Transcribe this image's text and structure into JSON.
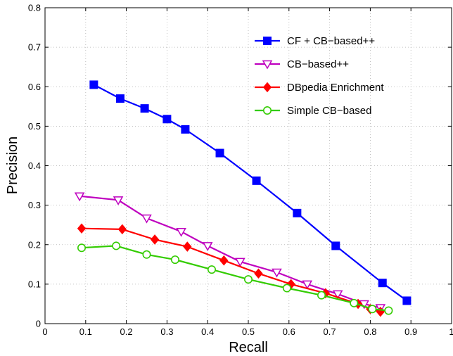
{
  "chart_data": {
    "type": "line",
    "xlabel": "Recall",
    "ylabel": "Precision",
    "xlim": [
      0,
      1
    ],
    "ylim": [
      0,
      0.8
    ],
    "xticks": [
      "0",
      "0.1",
      "0.2",
      "0.3",
      "0.4",
      "0.5",
      "0.6",
      "0.7",
      "0.8",
      "0.9",
      "1"
    ],
    "yticks": [
      "0",
      "0.1",
      "0.2",
      "0.3",
      "0.4",
      "0.5",
      "0.6",
      "0.7",
      "0.8"
    ],
    "grid": "dotted",
    "legend_position": "top-right",
    "series": [
      {
        "name": "CF + CB−based++",
        "color": "#0000ff",
        "marker": "square",
        "x": [
          0.12,
          0.185,
          0.245,
          0.3,
          0.345,
          0.43,
          0.52,
          0.62,
          0.715,
          0.83,
          0.89
        ],
        "y": [
          0.605,
          0.57,
          0.545,
          0.518,
          0.492,
          0.432,
          0.362,
          0.28,
          0.197,
          0.103,
          0.058
        ]
      },
      {
        "name": "CB−based++",
        "color": "#bf00bf",
        "marker": "triangle-down",
        "x": [
          0.085,
          0.18,
          0.25,
          0.335,
          0.4,
          0.48,
          0.57,
          0.645,
          0.72,
          0.785,
          0.825
        ],
        "y": [
          0.323,
          0.313,
          0.267,
          0.233,
          0.197,
          0.157,
          0.13,
          0.1,
          0.075,
          0.05,
          0.04
        ]
      },
      {
        "name": "DBpedia Enrichment",
        "color": "#ff0000",
        "marker": "diamond",
        "x": [
          0.09,
          0.19,
          0.27,
          0.35,
          0.44,
          0.525,
          0.605,
          0.69,
          0.77,
          0.8,
          0.825
        ],
        "y": [
          0.241,
          0.239,
          0.213,
          0.195,
          0.16,
          0.127,
          0.1,
          0.077,
          0.05,
          0.037,
          0.03
        ]
      },
      {
        "name": "Simple CB−based",
        "color": "#33cc00",
        "marker": "circle",
        "x": [
          0.09,
          0.175,
          0.25,
          0.32,
          0.41,
          0.5,
          0.595,
          0.68,
          0.76,
          0.805,
          0.845
        ],
        "y": [
          0.192,
          0.197,
          0.175,
          0.162,
          0.137,
          0.112,
          0.09,
          0.072,
          0.052,
          0.037,
          0.033
        ]
      }
    ]
  }
}
